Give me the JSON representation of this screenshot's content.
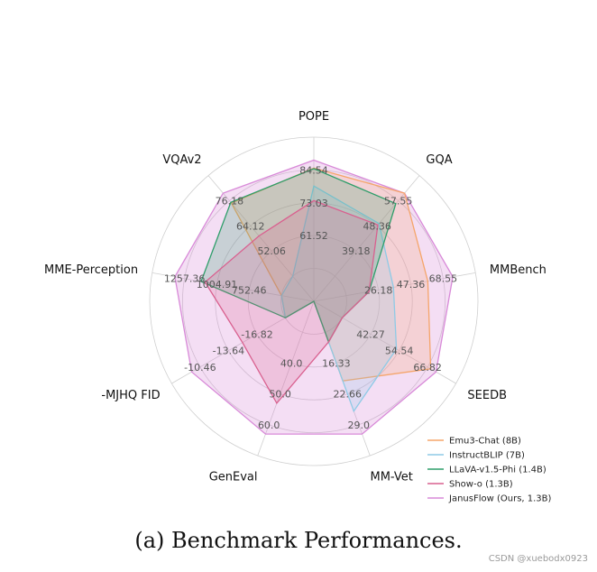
{
  "chart_data": {
    "type": "radar",
    "axes": [
      {
        "name": "POPE",
        "ticks": [
          "61.52",
          "73.03",
          "84.54"
        ]
      },
      {
        "name": "GQA",
        "ticks": [
          "39.18",
          "48.36",
          "57.55"
        ]
      },
      {
        "name": "MMBench",
        "ticks": [
          "26.18",
          "47.36",
          "68.55"
        ]
      },
      {
        "name": "SEEDB",
        "ticks": [
          "42.27",
          "54.54",
          "66.82"
        ]
      },
      {
        "name": "MM-Vet",
        "ticks": [
          "16.33",
          "22.66",
          "29.0"
        ]
      },
      {
        "name": "GenEval",
        "ticks": [
          "40.0",
          "50.0",
          "60.0"
        ]
      },
      {
        "name": "-MJHQ FID",
        "ticks": [
          "-16.82",
          "-13.64",
          "-10.46"
        ]
      },
      {
        "name": "MME-Perception",
        "ticks": [
          "752.46",
          "1004.91",
          "1257.36"
        ]
      },
      {
        "name": "VQAv2",
        "ticks": [
          "52.06",
          "64.12",
          "76.18"
        ]
      }
    ],
    "series": [
      {
        "name": "Emu3-Chat (8B)",
        "color": "#f5a56a",
        "values": [
          85.2,
          60.3,
          58.5,
          68.2,
          20.0,
          20.0,
          -20.0,
          500.0,
          75.1
        ]
      },
      {
        "name": "InstructBLIP (7B)",
        "color": "#8ecae6",
        "values": [
          78.9,
          49.2,
          36.0,
          53.4,
          26.2,
          20.0,
          -20.0,
          500.0,
          40.0
        ]
      },
      {
        "name": "LLaVA-v1.5-Phi (1.4B)",
        "color": "#2e9e6a",
        "values": [
          85.0,
          56.5,
          20.0,
          30.0,
          12.0,
          20.0,
          -20.0,
          1128.0,
          75.4
        ]
      },
      {
        "name": "Show-o (1.3B)",
        "color": "#d9608f",
        "values": [
          73.8,
          48.7,
          20.0,
          30.0,
          12.0,
          53.0,
          -15.2,
          1097.2,
          59.3
        ]
      },
      {
        "name": "JanusFlow (Ours, 1.3B)",
        "color": "#d88ad8",
        "values": [
          88.0,
          60.3,
          74.9,
          70.5,
          30.9,
          63.0,
          -9.51,
          1333.1,
          79.8
        ]
      }
    ],
    "legend": "bottom-right",
    "grid": true
  },
  "caption": "(a) Benchmark Performances.",
  "watermark": "CSDN @xuebodx0923"
}
